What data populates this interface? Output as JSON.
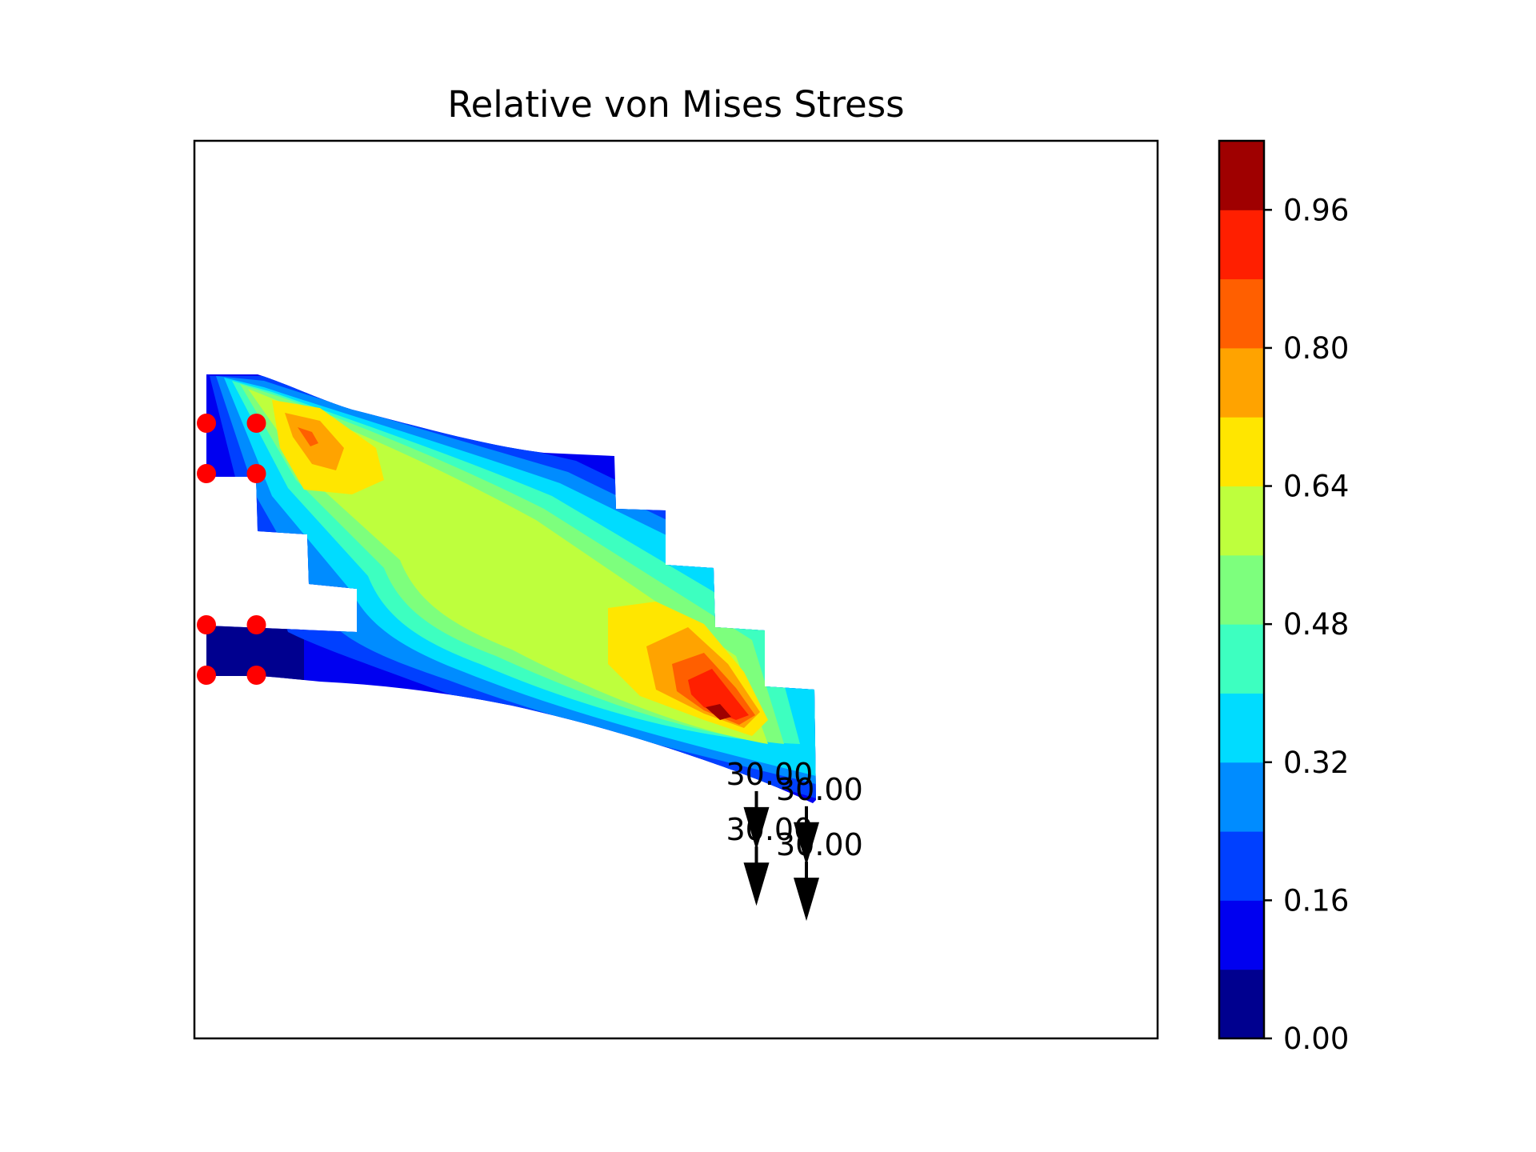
{
  "chart_data": {
    "type": "heatmap",
    "title": "Relative von Mises Stress",
    "xlabel": "",
    "ylabel": "",
    "grid": false,
    "legend": "colorbar-right",
    "colorbar": {
      "levels": [
        0.0,
        0.08,
        0.16,
        0.24,
        0.32,
        0.4,
        0.48,
        0.56,
        0.64,
        0.72,
        0.8,
        0.88,
        0.96,
        1.04
      ],
      "tick_values": [
        0.0,
        0.16,
        0.32,
        0.48,
        0.64,
        0.8,
        0.96
      ],
      "tick_labels": [
        "0.00",
        "0.16",
        "0.32",
        "0.48",
        "0.64",
        "0.80",
        "0.96"
      ],
      "colors": [
        "#00008f",
        "#0000f0",
        "#0040ff",
        "#008cff",
        "#00dcff",
        "#3dffc0",
        "#7dff7d",
        "#beff3d",
        "#ffe600",
        "#ffa300",
        "#ff5f00",
        "#ff1f00",
        "#9f0000"
      ]
    },
    "stress_field": {
      "description_levels": "relative stress (0-1) along the beam",
      "peak_regions": [
        {
          "location": "upper-left near supports",
          "value": 0.95
        },
        {
          "location": "lower-right near loads",
          "value": 1.0
        }
      ]
    },
    "supports": [
      {
        "x": 0,
        "y": 4
      },
      {
        "x": 1,
        "y": 4
      },
      {
        "x": 0,
        "y": 3
      },
      {
        "x": 1,
        "y": 3
      },
      {
        "x": 0,
        "y": 0
      },
      {
        "x": 1,
        "y": 0
      },
      {
        "x": 0,
        "y": -1
      },
      {
        "x": 1,
        "y": -1
      }
    ],
    "loads": [
      {
        "label": "30.00",
        "x": 11,
        "y": -3.3,
        "direction": "down"
      },
      {
        "label": "30.00",
        "x": 12,
        "y": -3.6,
        "direction": "down"
      },
      {
        "label": "30.00",
        "x": 11,
        "y": -4.4,
        "direction": "down"
      },
      {
        "label": "30.00",
        "x": 12,
        "y": -4.7,
        "direction": "down"
      }
    ],
    "colors": {
      "support": "#ff0000",
      "load_arrow": "#000000"
    }
  }
}
